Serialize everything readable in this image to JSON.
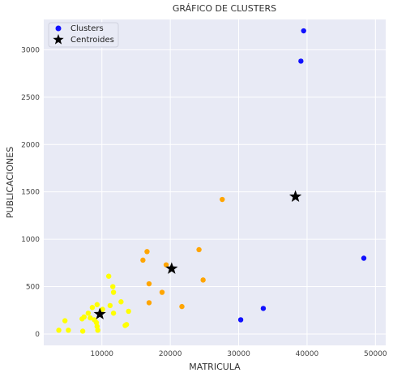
{
  "chart_data": {
    "type": "scatter",
    "title": "GRÁFICO DE CLUSTERS",
    "xlabel": "MATRICULA",
    "ylabel": "PUBLICACIONES",
    "xlim": [
      1500,
      51500
    ],
    "ylim": [
      -120,
      3320
    ],
    "xticks": [
      10000,
      20000,
      30000,
      40000,
      50000
    ],
    "yticks": [
      0,
      500,
      1000,
      1500,
      2000,
      2500,
      3000
    ],
    "grid": true,
    "legend": {
      "position": "top-left",
      "entries": [
        {
          "label": "Clusters",
          "marker": "dot",
          "color": "#1010ff"
        },
        {
          "label": "Centroides",
          "marker": "star",
          "color": "#000000"
        }
      ]
    },
    "colors": {
      "background": "#e8eaf5",
      "grid": "#ffffff",
      "blue": "#1010ff",
      "orange": "#ffa500",
      "yellow": "#ffff00",
      "centroid": "#000000"
    },
    "series": [
      {
        "cluster": 0,
        "color": "#1010ff",
        "points": [
          [
            39500,
            3200
          ],
          [
            39100,
            2880
          ],
          [
            48300,
            800
          ],
          [
            33600,
            270
          ],
          [
            30300,
            150
          ]
        ]
      },
      {
        "cluster": 1,
        "color": "#ffa500",
        "points": [
          [
            27600,
            1420
          ],
          [
            16600,
            870
          ],
          [
            16000,
            780
          ],
          [
            24200,
            890
          ],
          [
            19400,
            730
          ],
          [
            24800,
            570
          ],
          [
            16900,
            530
          ],
          [
            18800,
            440
          ],
          [
            21700,
            290
          ],
          [
            16900,
            330
          ]
        ]
      },
      {
        "cluster": 2,
        "color": "#ffff00",
        "points": [
          [
            11000,
            610
          ],
          [
            11600,
            500
          ],
          [
            11700,
            440
          ],
          [
            12800,
            340
          ],
          [
            9300,
            310
          ],
          [
            11200,
            300
          ],
          [
            8600,
            280
          ],
          [
            10100,
            260
          ],
          [
            13900,
            240
          ],
          [
            8000,
            220
          ],
          [
            11700,
            220
          ],
          [
            7400,
            180
          ],
          [
            8300,
            170
          ],
          [
            7100,
            160
          ],
          [
            8900,
            150
          ],
          [
            4600,
            140
          ],
          [
            9200,
            120
          ],
          [
            13600,
            100
          ],
          [
            13400,
            90
          ],
          [
            9300,
            80
          ],
          [
            3700,
            40
          ],
          [
            5100,
            40
          ],
          [
            9400,
            40
          ],
          [
            7200,
            30
          ]
        ]
      }
    ],
    "centroids": [
      [
        38300,
        1450
      ],
      [
        20200,
        690
      ],
      [
        9700,
        210
      ]
    ]
  }
}
